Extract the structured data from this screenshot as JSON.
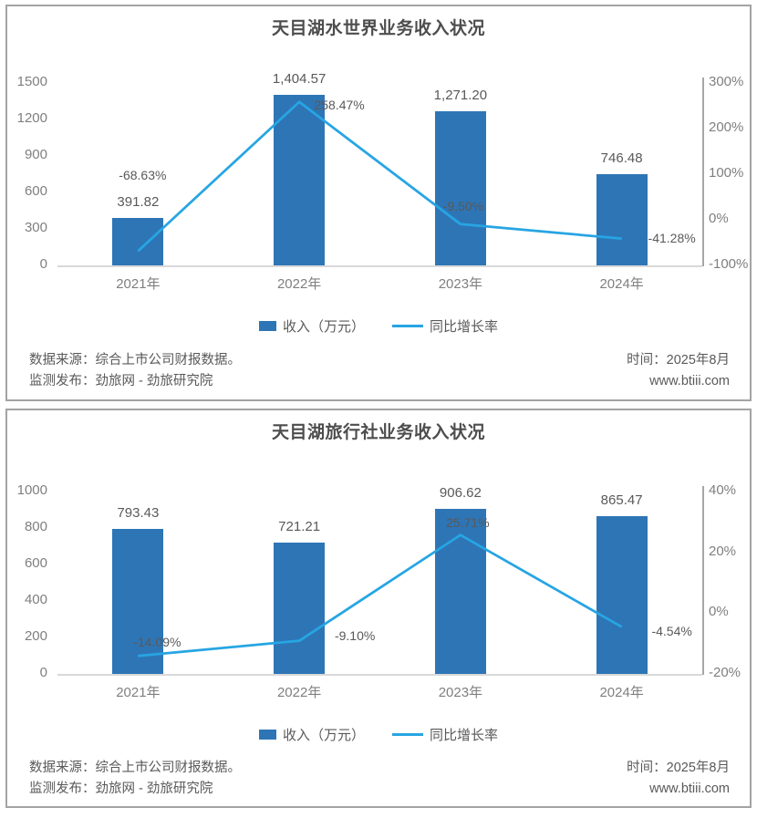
{
  "chart_data": [
    {
      "type": "bar+line",
      "title": "天目湖水世界业务收入状况",
      "categories": [
        "2021年",
        "2022年",
        "2023年",
        "2024年"
      ],
      "series": [
        {
          "name": "收入（万元）",
          "type": "bar",
          "axis": "left",
          "color": "#2E75B6",
          "values": [
            391.82,
            1404.57,
            1271.2,
            746.48
          ],
          "labels": [
            "391.82",
            "1,404.57",
            "1,271.20",
            "746.48"
          ]
        },
        {
          "name": "同比增长率",
          "type": "line",
          "axis": "right",
          "color": "#27A5E3",
          "values": [
            -68.63,
            258.47,
            -9.5,
            -41.28
          ],
          "labels": [
            "-68.63%",
            "258.47%",
            "-9.50%",
            "-41.28%"
          ]
        }
      ],
      "left_axis": {
        "min": 0,
        "max": 1500,
        "ticks": [
          0,
          300,
          600,
          900,
          1200,
          1500
        ],
        "tick_labels": [
          "0",
          "300",
          "600",
          "900",
          "1200",
          "1500"
        ]
      },
      "right_axis": {
        "min": -100,
        "max": 300,
        "ticks": [
          -100,
          0,
          100,
          200,
          300
        ],
        "tick_labels": [
          "-100%",
          "0%",
          "100%",
          "200%",
          "300%"
        ]
      },
      "grid": false,
      "legend_position": "bottom",
      "footer": {
        "source_line": "数据来源：综合上市公司财报数据。",
        "publisher_line": "监测发布：劲旅网 - 劲旅研究院",
        "time_line": "时间：2025年8月",
        "website": "www.btiii.com"
      }
    },
    {
      "type": "bar+line",
      "title": "天目湖旅行社业务收入状况",
      "categories": [
        "2021年",
        "2022年",
        "2023年",
        "2024年"
      ],
      "series": [
        {
          "name": "收入（万元）",
          "type": "bar",
          "axis": "left",
          "color": "#2E75B6",
          "values": [
            793.43,
            721.21,
            906.62,
            865.47
          ],
          "labels": [
            "793.43",
            "721.21",
            "906.62",
            "865.47"
          ]
        },
        {
          "name": "同比增长率",
          "type": "line",
          "axis": "right",
          "color": "#27A5E3",
          "values": [
            -14.09,
            -9.1,
            25.71,
            -4.54
          ],
          "labels": [
            "-14.09%",
            "-9.10%",
            "25.71%",
            "-4.54%"
          ]
        }
      ],
      "left_axis": {
        "min": 0,
        "max": 1000,
        "ticks": [
          0,
          200,
          400,
          600,
          800,
          1000
        ],
        "tick_labels": [
          "0",
          "200",
          "400",
          "600",
          "800",
          "1000"
        ]
      },
      "right_axis": {
        "min": -20,
        "max": 40,
        "ticks": [
          -20,
          0,
          20,
          40
        ],
        "tick_labels": [
          "-20%",
          "0%",
          "20%",
          "40%"
        ]
      },
      "grid": false,
      "legend_position": "bottom",
      "footer": {
        "source_line": "数据来源：综合上市公司财报数据。",
        "publisher_line": "监测发布：劲旅网 - 劲旅研究院",
        "time_line": "时间：2025年8月",
        "website": "www.btiii.com"
      }
    }
  ]
}
